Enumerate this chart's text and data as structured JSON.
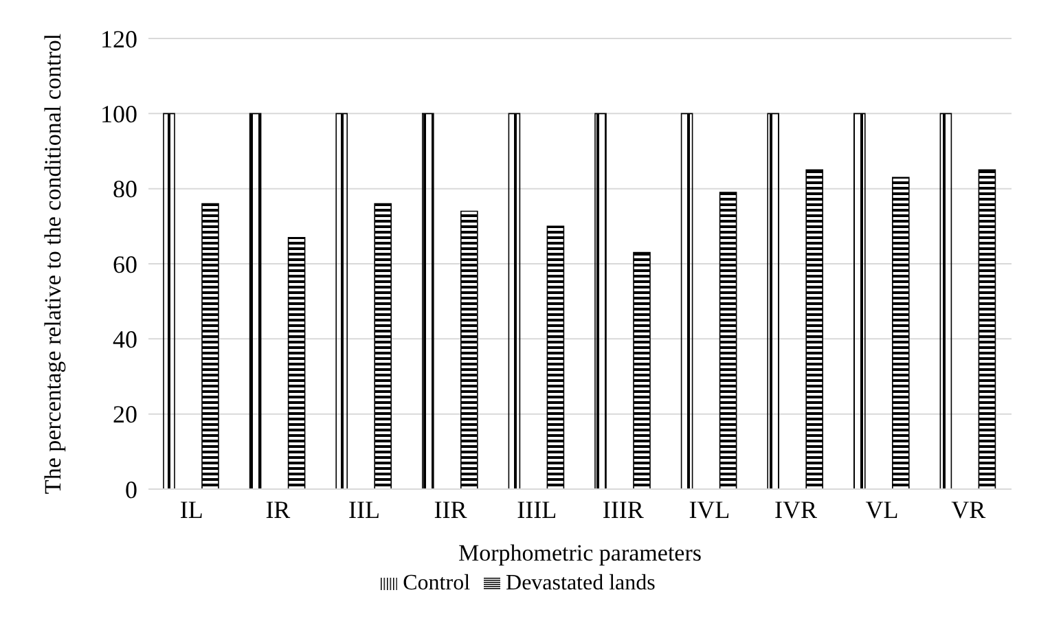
{
  "chart_data": {
    "type": "bar",
    "xlabel": "Morphometric parameters",
    "ylabel": "The percentage relative to the conditional control",
    "categories": [
      "IL",
      "IR",
      "IIL",
      "IIR",
      "IIIL",
      "IIIR",
      "IVL",
      "IVR",
      "VL",
      "VR"
    ],
    "series": [
      {
        "name": "Control",
        "color": "#000000",
        "values": [
          100,
          100,
          100,
          100,
          100,
          100,
          100,
          100,
          100,
          100
        ]
      },
      {
        "name": "Devastated lands",
        "color": "#000000",
        "values": [
          76,
          67,
          76,
          74,
          70,
          63,
          79,
          85,
          83,
          85
        ]
      }
    ],
    "ylim": [
      0,
      120
    ],
    "yticks": [
      0,
      20,
      40,
      60,
      80,
      100,
      120
    ],
    "grid": "y",
    "legend": "bottom"
  }
}
